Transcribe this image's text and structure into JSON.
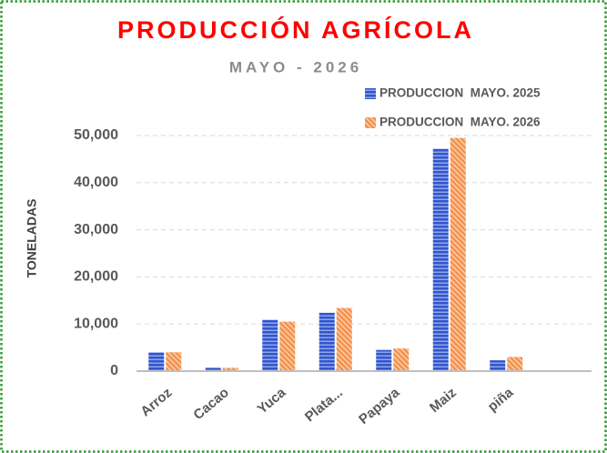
{
  "chart_data": {
    "type": "bar",
    "title": "PRODUCCIÓN AGRÍCOLA",
    "subtitle": "MAYO - 2026",
    "y_label": "TONELADAS",
    "categories": [
      "Arroz",
      "Cacao",
      "Yuca",
      "Plata...",
      "Papaya",
      "Maiz",
      "piña",
      null
    ],
    "series": [
      {
        "name": "PRODUCCION  MAYO. 2025",
        "color": "#3355cc",
        "values": [
          4000,
          700,
          10900,
          12400,
          4500,
          47200,
          2300,
          null
        ]
      },
      {
        "name": "PRODUCCION  MAYO. 2026",
        "color": "#f5914a",
        "values": [
          4000,
          700,
          10500,
          13400,
          4800,
          49500,
          3000,
          null
        ]
      }
    ],
    "ylim": [
      0,
      50000
    ],
    "yticks": [
      0,
      {
        "value": 10000,
        "label": "10,000"
      },
      {
        "value": 20000,
        "label": "20,000"
      },
      {
        "value": 30000,
        "label": "30,000"
      },
      {
        "value": 40000,
        "label": "40,000"
      },
      {
        "value": 50000,
        "label": "50,000"
      }
    ],
    "grid": true,
    "legend": "top-right"
  }
}
